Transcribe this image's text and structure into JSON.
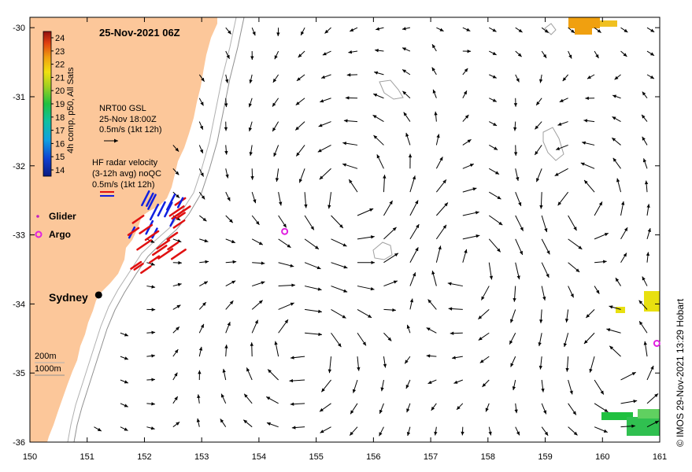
{
  "title": "25-Nov-2021 06Z",
  "copyright": "© IMOS 29-Nov-2021 13:29 Hobart",
  "axes": {
    "lon_ticks": [
      "150",
      "151",
      "152",
      "153",
      "154",
      "155",
      "156",
      "157",
      "158",
      "159",
      "160",
      "161"
    ],
    "lat_ticks": [
      "-30",
      "-31",
      "-32",
      "-33",
      "-34",
      "-35",
      "-36"
    ],
    "lon_range": [
      150,
      161
    ],
    "lat_range": [
      -36,
      -29.85
    ]
  },
  "colorbar": {
    "label": "4h comp, p50, All Sats",
    "ticks": [
      "24",
      "23",
      "22",
      "21",
      "20",
      "19",
      "18",
      "17",
      "16",
      "15",
      "14"
    ]
  },
  "gsl_legend": {
    "line1": "NRT00 GSL",
    "line2": "25-Nov 18:00Z",
    "line3": "0.5m/s (1kt 12h)"
  },
  "radar_legend": {
    "line1": "HF radar velocity",
    "line2": "(3-12h avg) noQC",
    "line3": "0.5m/s (1kt 12h)"
  },
  "markers": {
    "glider_label": "Glider",
    "argo_label": "Argo",
    "city_label": "Sydney",
    "argo_points": [
      [
        154.45,
        -32.95
      ],
      [
        160.95,
        -34.57
      ]
    ],
    "sydney": [
      151.2,
      -33.87
    ]
  },
  "depth_legend": {
    "line1": "200m",
    "line2": "1000m"
  },
  "colors": {
    "land": "#fcc79a",
    "gsl_arrow": "#000000",
    "radar_red": "#e01010",
    "radar_blue": "#1020e0",
    "argo": "#e020e0",
    "glider": "#c020c0"
  }
}
